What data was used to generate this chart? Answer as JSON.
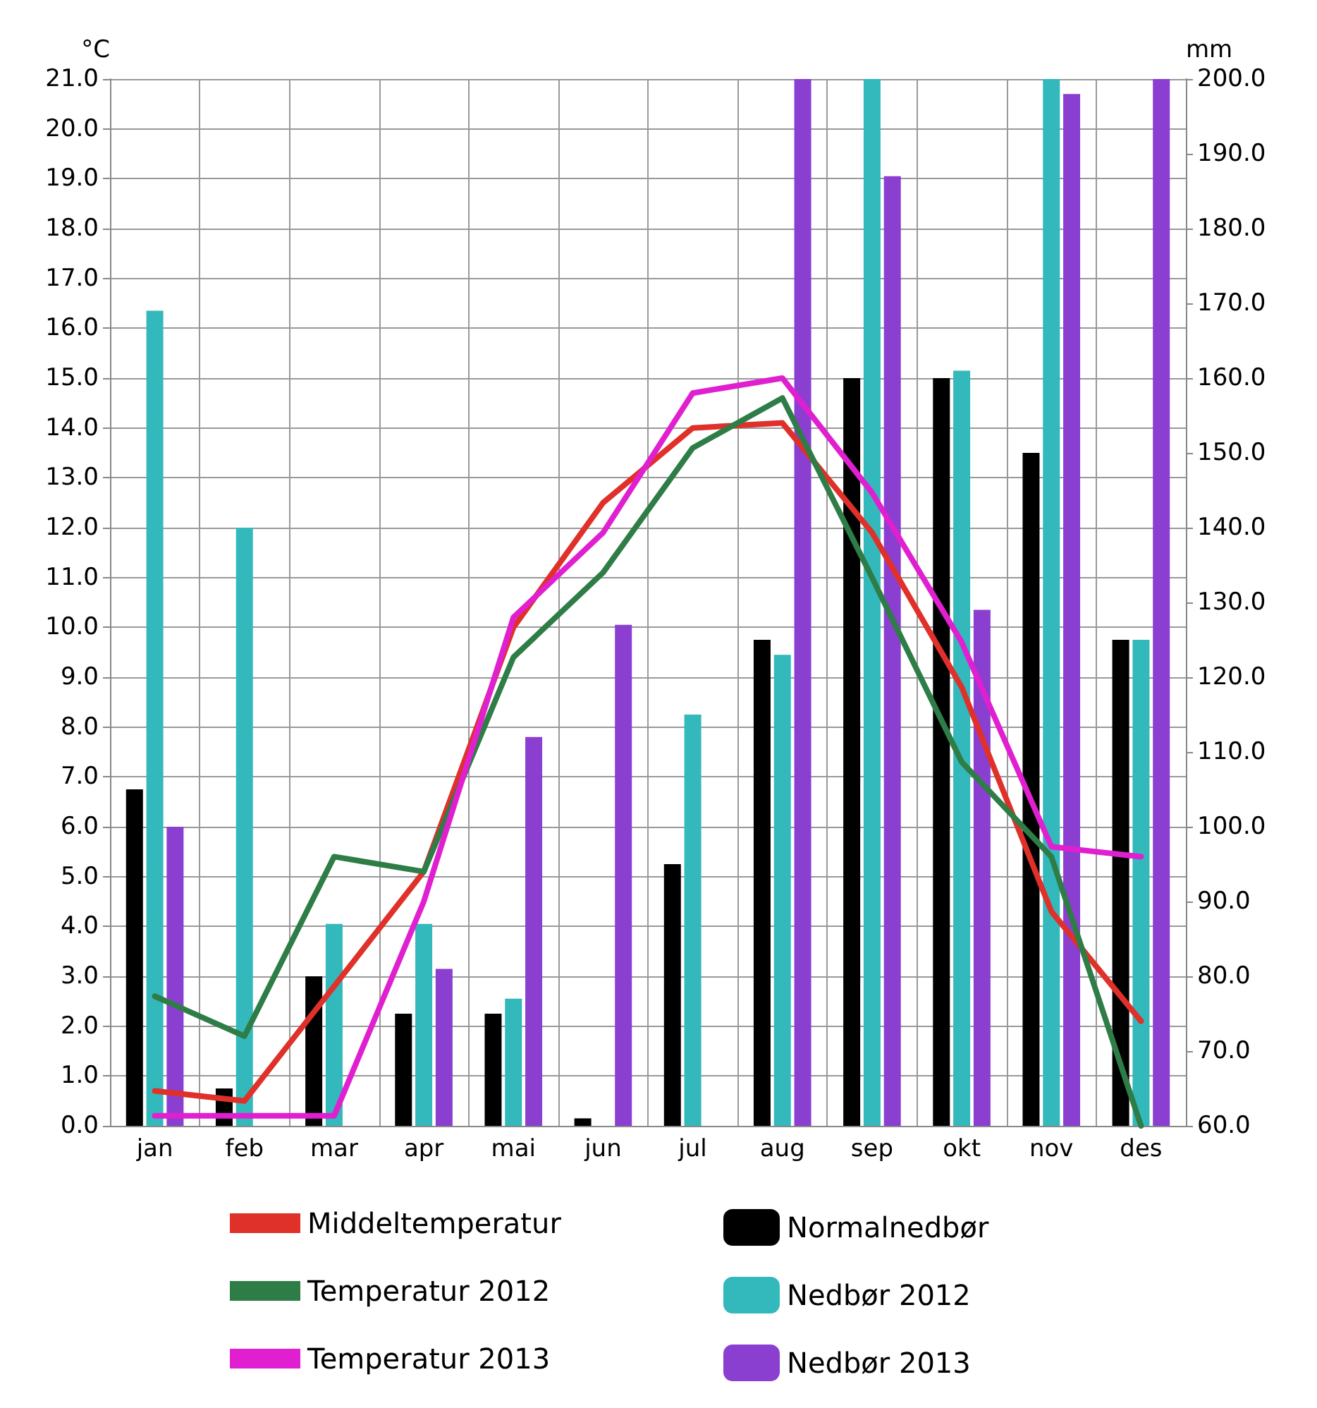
{
  "chart_data": {
    "type": "bar",
    "ylabel": "°C",
    "y2label": "mm",
    "categories": [
      "jan",
      "feb",
      "mar",
      "apr",
      "mai",
      "jun",
      "jul",
      "aug",
      "sep",
      "okt",
      "nov",
      "des"
    ],
    "series": [
      {
        "name": "Middeltemperatur",
        "type": "line",
        "color": "#e0302a",
        "values": [
          0.7,
          0.5,
          2.8,
          5.1,
          10.0,
          12.5,
          14.0,
          14.1,
          11.9,
          8.8,
          4.3,
          2.1
        ]
      },
      {
        "name": "Temperatur 2012",
        "type": "line",
        "color": "#2e7d46",
        "values": [
          2.6,
          1.8,
          5.4,
          5.1,
          9.4,
          11.1,
          13.6,
          14.6,
          11.0,
          7.3,
          5.4,
          0.0
        ]
      },
      {
        "name": "Temperatur 2013",
        "type": "line",
        "color": "#e020d0",
        "values": [
          0.2,
          0.2,
          0.2,
          4.5,
          10.2,
          11.9,
          14.7,
          15.0,
          12.7,
          9.7,
          5.6,
          5.4
        ]
      },
      {
        "name": "Normalnedbør",
        "axis": "y2",
        "color": "#000000",
        "values": [
          105,
          65,
          80,
          75,
          75,
          61,
          95,
          125,
          160,
          160,
          150,
          125
        ]
      },
      {
        "name": "Nedbør 2012",
        "axis": "y2",
        "color": "#33b8bc",
        "values": [
          169,
          140,
          87,
          87,
          77,
          null,
          115,
          123,
          200,
          161,
          200,
          125
        ]
      },
      {
        "name": "Nedbør 2013",
        "axis": "y2",
        "color": "#8a3fd0",
        "values": [
          100,
          null,
          null,
          81,
          112,
          127,
          null,
          200,
          187,
          129,
          198,
          200
        ]
      }
    ],
    "ylim": [
      0,
      21
    ],
    "yticks": [
      {
        "value": 0,
        "label": "0.0"
      },
      {
        "value": 1,
        "label": "1.0"
      },
      {
        "value": 2,
        "label": "2.0"
      },
      {
        "value": 3,
        "label": "3.0"
      },
      {
        "value": 4,
        "label": "4.0"
      },
      {
        "value": 5,
        "label": "5.0"
      },
      {
        "value": 6,
        "label": "6.0"
      },
      {
        "value": 7,
        "label": "7.0"
      },
      {
        "value": 8,
        "label": "8.0"
      },
      {
        "value": 9,
        "label": "9.0"
      },
      {
        "value": 10,
        "label": "10.0"
      },
      {
        "value": 11,
        "label": "11.0"
      },
      {
        "value": 12,
        "label": "12.0"
      },
      {
        "value": 13,
        "label": "13.0"
      },
      {
        "value": 14,
        "label": "14.0"
      },
      {
        "value": 15,
        "label": "15.0"
      },
      {
        "value": 16,
        "label": "16.0"
      },
      {
        "value": 17,
        "label": "17.0"
      },
      {
        "value": 18,
        "label": "18.0"
      },
      {
        "value": 19,
        "label": "19.0"
      },
      {
        "value": 20,
        "label": "20.0"
      },
      {
        "value": 21,
        "label": "21.0"
      }
    ],
    "y2lim": [
      60,
      200
    ],
    "y2ticks": [
      {
        "value": 60,
        "label": "60.0"
      },
      {
        "value": 70,
        "label": "70.0"
      },
      {
        "value": 80,
        "label": "80.0"
      },
      {
        "value": 90,
        "label": "90.0"
      },
      {
        "value": 100,
        "label": "100.0"
      },
      {
        "value": 110,
        "label": "110.0"
      },
      {
        "value": 120,
        "label": "120.0"
      },
      {
        "value": 130,
        "label": "130.0"
      },
      {
        "value": 140,
        "label": "140.0"
      },
      {
        "value": 150,
        "label": "150.0"
      },
      {
        "value": 160,
        "label": "160.0"
      },
      {
        "value": 170,
        "label": "170.0"
      },
      {
        "value": 180,
        "label": "180.0"
      },
      {
        "value": 190,
        "label": "190.0"
      },
      {
        "value": 200,
        "label": "200.0"
      }
    ],
    "grid": true,
    "legend": "bottom",
    "marker": "none",
    "line_style": "solid"
  }
}
